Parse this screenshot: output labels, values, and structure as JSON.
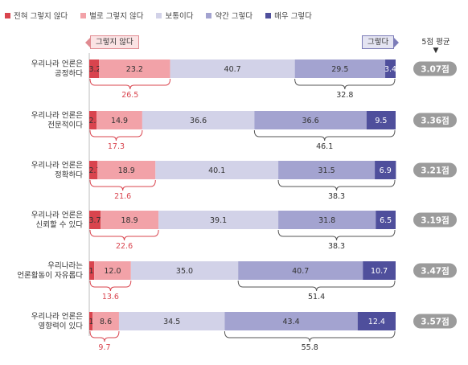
{
  "legend": [
    {
      "label": "전혀 그렇지 않다",
      "color": "#d9444e"
    },
    {
      "label": "별로 그렇지 않다",
      "color": "#f2a2a8"
    },
    {
      "label": "보통이다",
      "color": "#d2d2e8"
    },
    {
      "label": "약간 그렇다",
      "color": "#a3a3d0"
    },
    {
      "label": "매우 그렇다",
      "color": "#4f4f9c"
    }
  ],
  "tags": {
    "negative": "그렇지 않다",
    "positive": "그렇다"
  },
  "avg_header": {
    "label": "5점 평균",
    "arrow": "▼"
  },
  "colors": {
    "neg_sum": "#d9444e",
    "pos_sum": "#333333",
    "badge": "#9b9b9b",
    "brace": "#d9444e",
    "brace_pos": "#555555"
  },
  "chart_data": {
    "type": "bar",
    "stacked": true,
    "orientation": "horizontal",
    "xlim": [
      0,
      100
    ],
    "categories": [
      [
        "우리나라 언론은",
        "공정하다"
      ],
      [
        "우리나라 언론은",
        "전문적이다"
      ],
      [
        "우리나라 언론은",
        "정확하다"
      ],
      [
        "우리나라 언론은",
        "신뢰할 수 있다"
      ],
      [
        "우리나라는",
        "언론활동이 자유롭다"
      ],
      [
        "우리나라 언론은",
        "영향력이 있다"
      ]
    ],
    "series": [
      {
        "name": "전혀 그렇지 않다",
        "values": [
          3.2,
          2.4,
          2.7,
          3.7,
          1.6,
          1.1
        ]
      },
      {
        "name": "별로 그렇지 않다",
        "values": [
          23.2,
          14.9,
          18.9,
          18.9,
          12.0,
          8.6
        ]
      },
      {
        "name": "보통이다",
        "values": [
          40.7,
          36.6,
          40.1,
          39.1,
          35.0,
          34.5
        ]
      },
      {
        "name": "약간 그렇다",
        "values": [
          29.5,
          36.6,
          31.5,
          31.8,
          40.7,
          43.4
        ]
      },
      {
        "name": "매우 그렇다",
        "values": [
          3.4,
          9.5,
          6.9,
          6.5,
          10.7,
          12.4
        ]
      }
    ],
    "negative_sum": [
      "26.5",
      "17.3",
      "21.6",
      "22.6",
      "13.6",
      "9.7"
    ],
    "positive_sum": [
      "32.8",
      "46.1",
      "38.3",
      "38.3",
      "51.4",
      "55.8"
    ],
    "average": [
      "3.07점",
      "3.36점",
      "3.21점",
      "3.19점",
      "3.47점",
      "3.57점"
    ]
  }
}
